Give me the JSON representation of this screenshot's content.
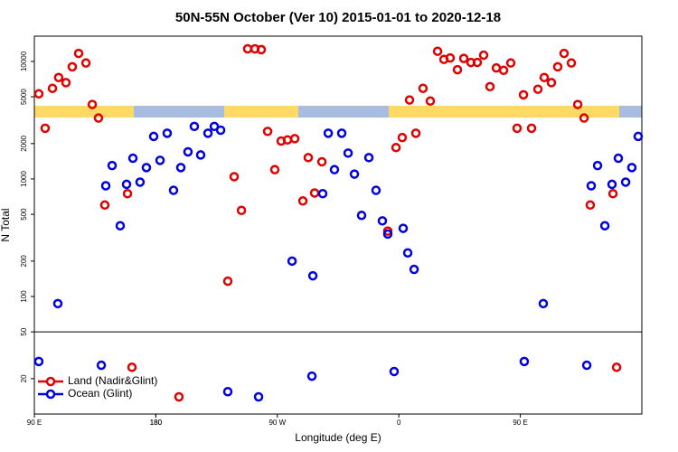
{
  "chart_data": {
    "type": "scatter",
    "title": "50N-55N October (Ver 10)   2015-01-01 to 2020-12-18",
    "x_label": "Longitude (deg E)",
    "y_label": "N Total",
    "log_y": true,
    "legend": "lower left",
    "xlim": [
      90,
      540
    ],
    "xticks": [
      {
        "value": 90,
        "label": "90 E"
      },
      180,
      {
        "value": 270,
        "label": "90 W"
      },
      {
        "value": 360,
        "label": "0"
      },
      {
        "value": 450,
        "label": "90 E"
      },
      180.0001
    ],
    "ylim": [
      10,
      16400
    ],
    "yticks": [
      20,
      50,
      100,
      200,
      500,
      1000,
      2000,
      5000,
      10000
    ],
    "series": [
      {
        "name": "Land (Nadir&Glint)",
        "color": "#e00000",
        "x": [
          93.3,
          98,
          103.4,
          108,
          113.4,
          118.1,
          122.8,
          128.2,
          132.9,
          137.5,
          142.2,
          159,
          162.3,
          197.1,
          233.3,
          238,
          243.4,
          248,
          253.4,
          258.1,
          262.8,
          268.1,
          272.8,
          277.5,
          282.9,
          288.9,
          292.9,
          297.6,
          303,
          351.8,
          357.9,
          362.5,
          367.9,
          372.6,
          377.9,
          383.3,
          388.7,
          393.4,
          398,
          403.4,
          408.1,
          413.4,
          418.1,
          422.8,
          427.5,
          432.2,
          437.6,
          442.9,
          447.6,
          452.3,
          458.3,
          463,
          467.7,
          473,
          477.7,
          482.4,
          487.8,
          492.5,
          497.2,
          501.8,
          518.6,
          521.3
        ],
        "values": [
          5300,
          2700,
          5900,
          7300,
          6600,
          9000,
          11700,
          9700,
          4300,
          3300,
          600,
          750,
          25,
          14,
          135,
          1045,
          540,
          12800,
          12800,
          12600,
          2540,
          1200,
          2100,
          2150,
          2200,
          650,
          1520,
          760,
          1400,
          360,
          1850,
          2250,
          4700,
          2450,
          5900,
          4600,
          12200,
          10400,
          10700,
          8500,
          10600,
          9800,
          9800,
          11300,
          6100,
          8800,
          8400,
          9700,
          2700,
          5200,
          2700,
          5800,
          7300,
          6600,
          9000,
          11700,
          9700,
          4300,
          3300,
          600,
          750,
          25
        ]
      },
      {
        "name": "Ocean (Glint)",
        "color": "#0000e0",
        "x": [
          93.3,
          107.4,
          139.6,
          142.9,
          147.6,
          153.6,
          158.3,
          163,
          168.3,
          173,
          178.4,
          183.1,
          188.4,
          193.1,
          198.5,
          203.8,
          208.5,
          213.2,
          218.6,
          223.3,
          228,
          233.3,
          256.1,
          280.9,
          295.6,
          296.3,
          303.6,
          307.7,
          312.3,
          317.7,
          322.4,
          327.1,
          332.4,
          337.8,
          343.1,
          347.8,
          351.8,
          356.5,
          363.2,
          366.6,
          371.3,
          452.9,
          467,
          499.2,
          502.5,
          507.2,
          512.6,
          517.9,
          522.6,
          528,
          532.6,
          537.3
        ],
        "values": [
          28,
          87,
          26,
          875,
          1300,
          400,
          900,
          1500,
          940,
          1250,
          2300,
          1440,
          2450,
          800,
          1250,
          1700,
          2800,
          1600,
          2450,
          2800,
          2600,
          15.5,
          14,
          200,
          21,
          150,
          750,
          2450,
          1200,
          2450,
          1660,
          1100,
          490,
          1520,
          800,
          440,
          340,
          23,
          380,
          235,
          170,
          28,
          87,
          26,
          875,
          1300,
          400,
          900,
          1500,
          940,
          1250,
          2300
        ]
      }
    ]
  }
}
